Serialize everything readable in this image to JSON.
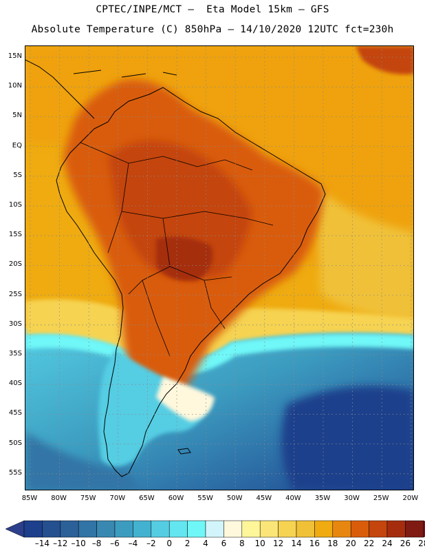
{
  "header": {
    "line1": "CPTEC/INPE/MCT –  Eta Model 15km – GFS",
    "line2": "Absolute Temperature (C) 850hPa – 14/10/2020 12UTC fct=230h"
  },
  "map": {
    "lat_labels": [
      "15N",
      "10N",
      "5N",
      "EQ",
      "5S",
      "10S",
      "15S",
      "20S",
      "25S",
      "30S",
      "35S",
      "40S",
      "45S",
      "50S",
      "55S"
    ],
    "lon_labels": [
      "85W",
      "80W",
      "75W",
      "70W",
      "65W",
      "60W",
      "55W",
      "50W",
      "45W",
      "40W",
      "35W",
      "30W",
      "25W",
      "20W"
    ],
    "region": "South America"
  },
  "legend": {
    "unit": "C",
    "labels": [
      "-14",
      "-12",
      "-10",
      "-8",
      "-6",
      "-4",
      "-2",
      "0",
      "2",
      "4",
      "6",
      "8",
      "10",
      "12",
      "14",
      "16",
      "18",
      "20",
      "22",
      "24",
      "26",
      "28"
    ],
    "colors": [
      "#1d3f8c",
      "#24508f",
      "#2b6098",
      "#3174a6",
      "#3888b2",
      "#3c9cc0",
      "#43b2d0",
      "#54cde3",
      "#63e6ef",
      "#6ff7f7",
      "#d2f5fb",
      "#fff8dd",
      "#fff69a",
      "#fbe578",
      "#f6d351",
      "#f0c137",
      "#efab10",
      "#e8870f",
      "#d95c0b",
      "#c4450d",
      "#a52d0e",
      "#7f1b12"
    ],
    "under_color": "#2b3f8c",
    "over_color": "#7b1020"
  }
}
